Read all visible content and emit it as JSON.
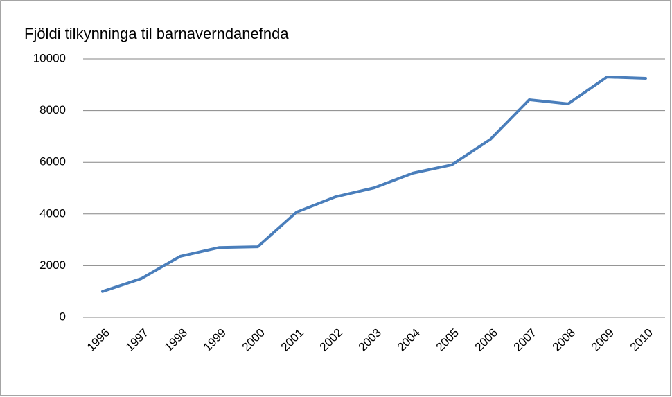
{
  "chart_data": {
    "type": "line",
    "title": "Fjöldi tilkynninga til barnaverndanefnda",
    "categories": [
      "1996",
      "1997",
      "1998",
      "1999",
      "2000",
      "2001",
      "2002",
      "2003",
      "2004",
      "2005",
      "2006",
      "2007",
      "2008",
      "2009",
      "2010"
    ],
    "series": [
      {
        "color": "#4a7ebb",
        "values": [
          1000,
          1500,
          2360,
          2700,
          2730,
          4070,
          4660,
          5010,
          5580,
          5900,
          6890,
          8420,
          8260,
          9300,
          9250
        ]
      }
    ],
    "ylim": [
      0,
      10000
    ],
    "yticks": [
      0,
      2000,
      4000,
      6000,
      8000,
      10000
    ],
    "grid": true
  }
}
